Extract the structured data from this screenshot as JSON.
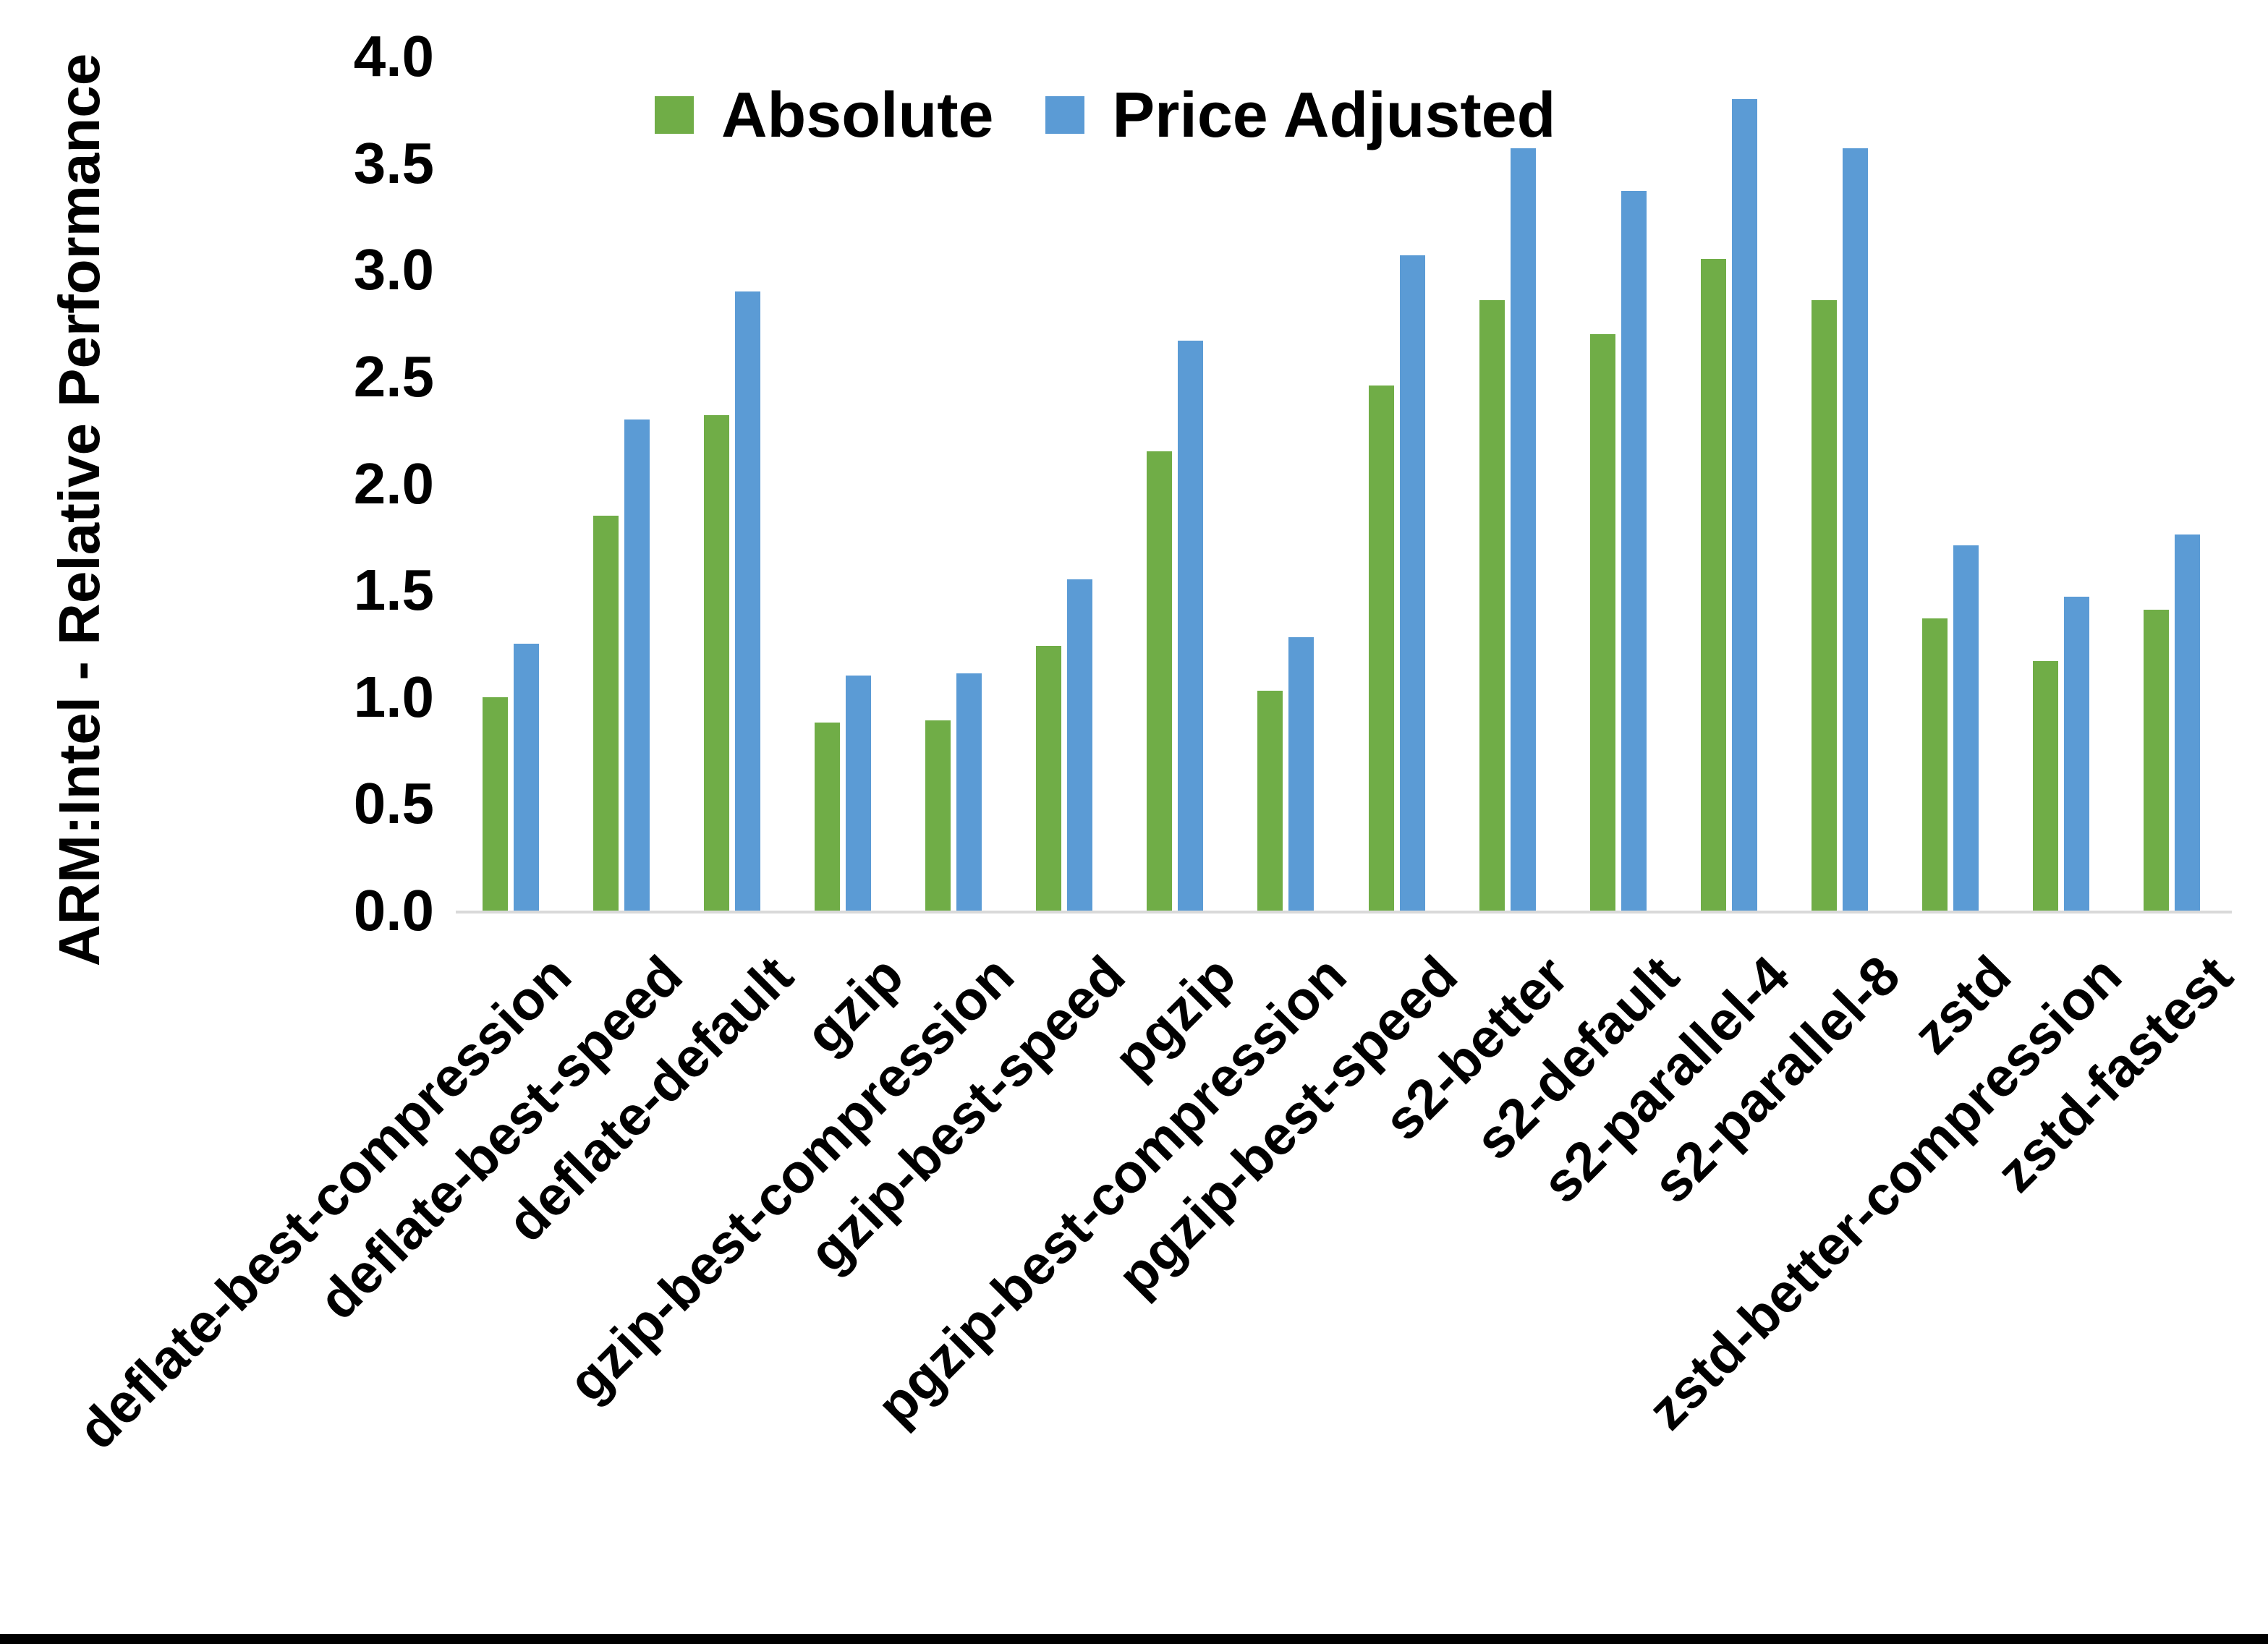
{
  "y_axis": {
    "title": "ARM:Intel - Relative Performance",
    "tick_labels": [
      "0.0",
      "0.5",
      "1.0",
      "1.5",
      "2.0",
      "2.5",
      "3.0",
      "3.5",
      "4.0"
    ],
    "min": 0.0,
    "max": 4.0
  },
  "legend": {
    "items": [
      {
        "label": "Absolute",
        "color": "#70AD47"
      },
      {
        "label": "Price Adjusted",
        "color": "#5B9BD5"
      }
    ]
  },
  "chart_data": {
    "type": "bar",
    "title": "",
    "xlabel": "",
    "ylabel": "ARM:Intel - Relative Performance",
    "ylim": [
      0.0,
      4.0
    ],
    "y_tick_step": 0.5,
    "grid": false,
    "legend_position": "top-center",
    "categories": [
      "deflate-best-compression",
      "deflate-best-speed",
      "deflate-default",
      "gzip",
      "gzip-best-compression",
      "gzip-best-speed",
      "pgzip",
      "pgzip-best-compression",
      "pgzip-best-speed",
      "s2-better",
      "s2-default",
      "s2-parallel-4",
      "s2-parallel-8",
      "zstd",
      "zstd-better-compression",
      "zstd-fastest"
    ],
    "series": [
      {
        "name": "Absolute",
        "color": "#70AD47",
        "values": [
          1.0,
          1.85,
          2.32,
          0.88,
          0.89,
          1.24,
          2.15,
          1.03,
          2.46,
          2.86,
          2.7,
          3.05,
          2.86,
          1.37,
          1.17,
          1.41
        ]
      },
      {
        "name": "Price Adjusted",
        "color": "#5B9BD5",
        "values": [
          1.25,
          2.3,
          2.9,
          1.1,
          1.11,
          1.55,
          2.67,
          1.28,
          3.07,
          3.57,
          3.37,
          3.8,
          3.57,
          1.71,
          1.47,
          1.76
        ]
      }
    ]
  }
}
